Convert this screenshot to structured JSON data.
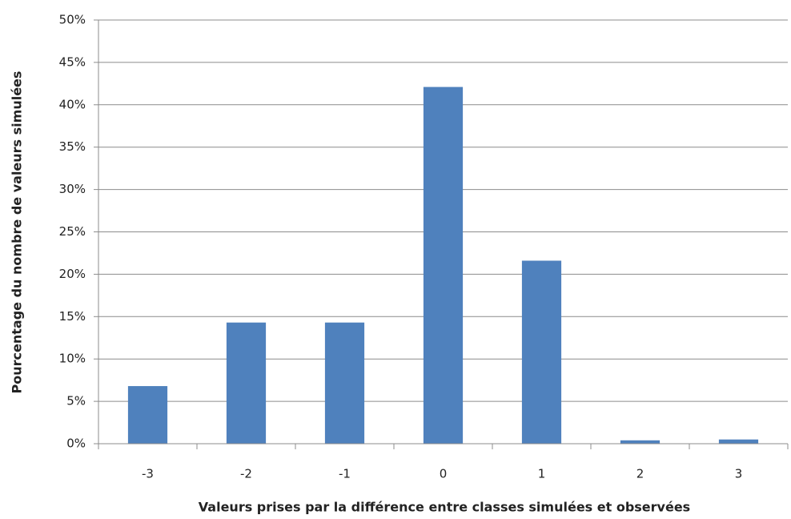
{
  "chart_data": {
    "type": "bar",
    "x_label": "Valeurs prises par la différence entre classes simulées et observées",
    "y_label": "Pourcentage du nombre de valeurs simulées",
    "categories": [
      "-3",
      "-2",
      "-1",
      "0",
      "1",
      "2",
      "3"
    ],
    "values": [
      6.8,
      14.3,
      14.3,
      42.1,
      21.6,
      0.4,
      0.5
    ],
    "color": "#4f81bd",
    "ylim": [
      0,
      50
    ],
    "yticks": [
      {
        "value": 0,
        "label": "0%"
      },
      {
        "value": 5,
        "label": "5%"
      },
      {
        "value": 10,
        "label": "10%"
      },
      {
        "value": 15,
        "label": "15%"
      },
      {
        "value": 20,
        "label": "20%"
      },
      {
        "value": 25,
        "label": "25%"
      },
      {
        "value": 30,
        "label": "30%"
      },
      {
        "value": 35,
        "label": "35%"
      },
      {
        "value": 40,
        "label": "40%"
      },
      {
        "value": 45,
        "label": "45%"
      },
      {
        "value": 50,
        "label": "50%"
      }
    ],
    "grid": true
  }
}
